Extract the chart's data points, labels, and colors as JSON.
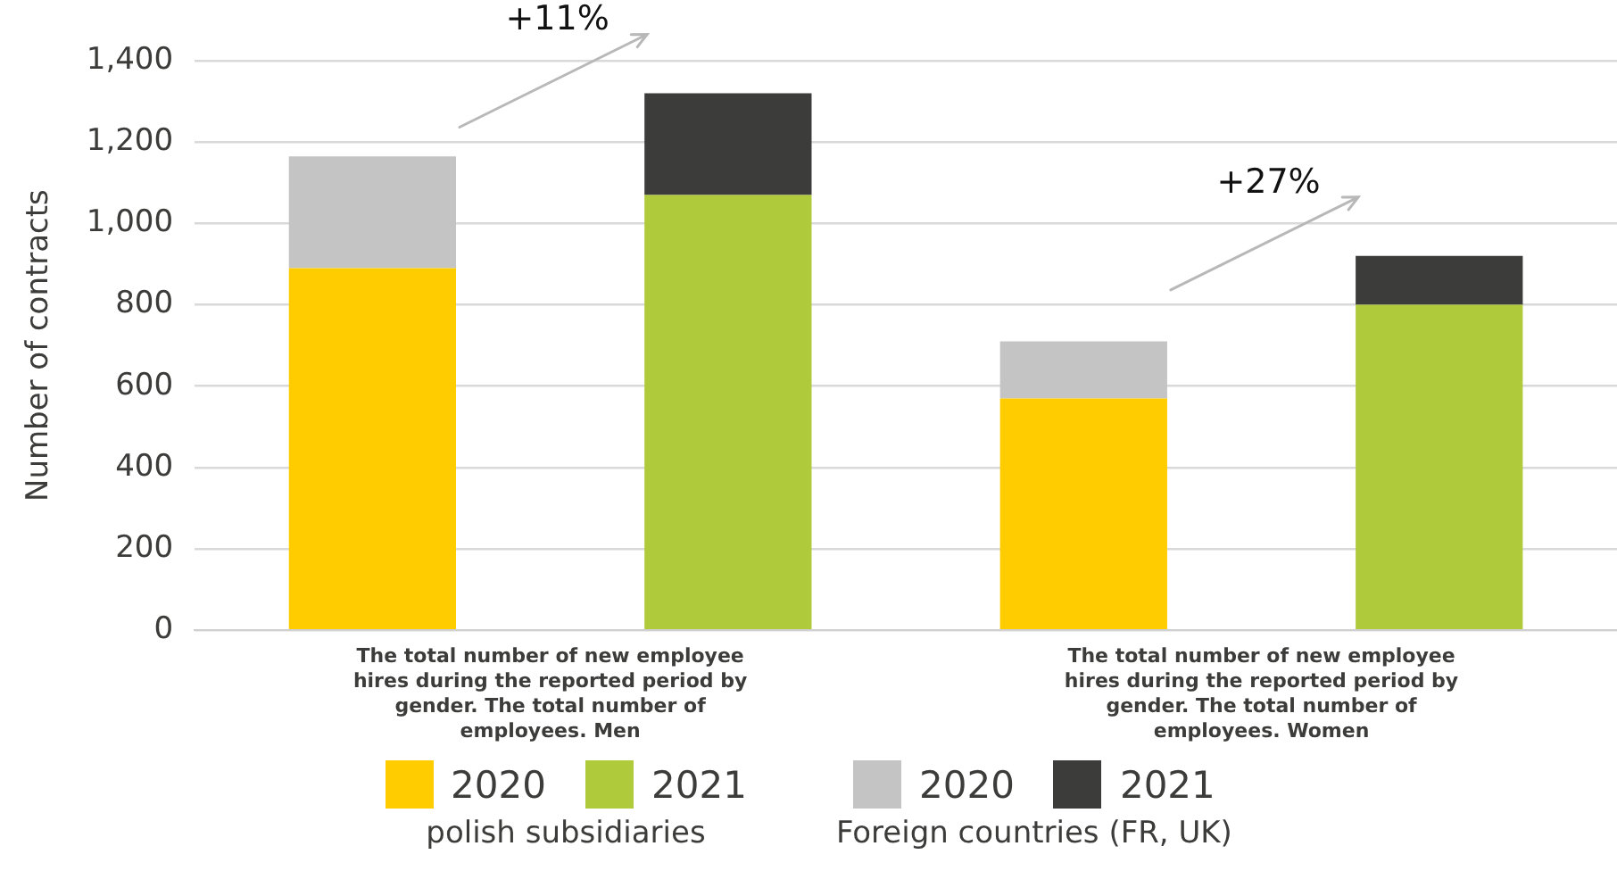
{
  "chart_data": {
    "type": "bar",
    "stacked": true,
    "ylabel": "Number of contracts",
    "categories": [
      "The total number of new employee hires during the reported period by gender. The total number of employees. Men",
      null,
      "The total number of new employee hires during the reported period by gender. The total number of employees. Women",
      null
    ],
    "series": [
      {
        "name": "2020",
        "color": "#ffcc00",
        "values": [
          890,
          null,
          570,
          null
        ]
      },
      {
        "name": "2021",
        "color": "#afca3a",
        "values": [
          null,
          1070,
          null,
          800
        ]
      },
      {
        "name": "2020",
        "color": "#c4c4c4",
        "values": [
          275,
          null,
          140,
          null
        ]
      },
      {
        "name": "2021",
        "color": "#3c3c3b",
        "values": [
          null,
          250,
          null,
          120
        ]
      }
    ],
    "ylim": [
      0,
      1400
    ],
    "yticks": [
      0,
      200,
      400,
      600,
      800,
      {
        "value": 1000,
        "label": "1,000"
      },
      {
        "value": 1200,
        "label": "1,200"
      },
      {
        "value": 1400,
        "label": "1,400"
      }
    ],
    "grid": "y",
    "legend": "bottom",
    "annotations": [
      "+11%",
      "+27%",
      "polish subsidiaries",
      "Foreign countries (FR, UK)"
    ]
  }
}
